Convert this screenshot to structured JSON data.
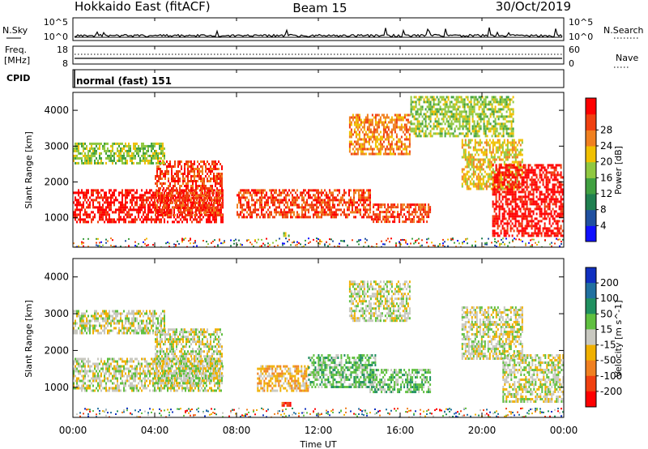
{
  "header": {
    "title_left": "Hokkaido East (fitACF)",
    "title_center": "Beam 15",
    "title_right": "30/Oct/2019"
  },
  "top_panels": {
    "nsky_label": "N.Sky",
    "nsky_ticks": [
      "10^5",
      "10^0"
    ],
    "nsearch_label": "N.Search",
    "freq_label_line1": "Freq.",
    "freq_label_line2": "[MHz]",
    "freq_ticks": [
      "18",
      "8"
    ],
    "nave_label": "Nave",
    "nave_ticks": [
      "60",
      "0"
    ],
    "cpid_label": "CPID",
    "cpid_value": "normal (fast) 151"
  },
  "chart_data": [
    {
      "type": "heatmap",
      "name": "power",
      "ylabel": "Slant Range [km]",
      "xlabel": "Time UT",
      "x_ticks": [
        "00:00",
        "04:00",
        "08:00",
        "12:00",
        "16:00",
        "20:00",
        "00:00"
      ],
      "x_range_hours": [
        0,
        24
      ],
      "y_ticks": [
        1000,
        2000,
        3000,
        4000
      ],
      "ylim": [
        180,
        4500
      ],
      "colorbar": {
        "label": "Power [dB]",
        "ticks": [
          "4",
          "8",
          "12",
          "16",
          "20",
          "24",
          "28"
        ],
        "colors": [
          "#1010ff",
          "#2050a0",
          "#208050",
          "#40a040",
          "#90c840",
          "#f0c000",
          "#f08020",
          "#f04010",
          "#ff0000"
        ]
      },
      "regions": [
        {
          "t": [
            0.0,
            7.3
          ],
          "r": [
            900,
            1800
          ],
          "level": 8
        },
        {
          "t": [
            4.0,
            7.3
          ],
          "r": [
            1100,
            2600
          ],
          "level": 7
        },
        {
          "t": [
            0.0,
            4.5
          ],
          "r": [
            2500,
            3100
          ],
          "level": 4
        },
        {
          "t": [
            8.0,
            14.5
          ],
          "r": [
            1000,
            1800
          ],
          "level": 7
        },
        {
          "t": [
            10.2,
            10.6
          ],
          "r": [
            500,
            600
          ],
          "level": 4
        },
        {
          "t": [
            14.5,
            17.5
          ],
          "r": [
            900,
            1400
          ],
          "level": 7
        },
        {
          "t": [
            13.5,
            16.5
          ],
          "r": [
            2800,
            3900
          ],
          "level": 6
        },
        {
          "t": [
            19.0,
            22.0
          ],
          "r": [
            1800,
            3200
          ],
          "level": 5
        },
        {
          "t": [
            20.5,
            24.0
          ],
          "r": [
            500,
            2500
          ],
          "level": 8
        },
        {
          "t": [
            16.5,
            21.5
          ],
          "r": [
            3300,
            4400
          ],
          "level": 4
        }
      ]
    },
    {
      "type": "heatmap",
      "name": "velocity",
      "ylabel": "Slant Range [km]",
      "xlabel": "Time UT",
      "x_ticks": [
        "00:00",
        "04:00",
        "08:00",
        "12:00",
        "16:00",
        "20:00",
        "00:00"
      ],
      "x_range_hours": [
        0,
        24
      ],
      "y_ticks": [
        1000,
        2000,
        3000,
        4000
      ],
      "ylim": [
        180,
        4500
      ],
      "colorbar": {
        "label": "Velocity [m s^-1]",
        "ticks": [
          "200",
          "100",
          "50",
          "15",
          "-15",
          "-50",
          "-100",
          "-200"
        ],
        "colors": [
          "#1030c0",
          "#2070a0",
          "#209060",
          "#60c040",
          "#c8c8c0",
          "#f0b000",
          "#f08020",
          "#f04010",
          "#ff0000"
        ]
      },
      "regions": [
        {
          "t": [
            0.0,
            7.3
          ],
          "r": [
            900,
            1800
          ],
          "level": 4
        },
        {
          "t": [
            4.0,
            7.3
          ],
          "r": [
            1100,
            2600
          ],
          "level": 4
        },
        {
          "t": [
            0.0,
            4.5
          ],
          "r": [
            2500,
            3100
          ],
          "level": 4
        },
        {
          "t": [
            9.0,
            11.5
          ],
          "r": [
            900,
            1600
          ],
          "level": 5
        },
        {
          "t": [
            11.5,
            14.8
          ],
          "r": [
            1000,
            1900
          ],
          "level": 3
        },
        {
          "t": [
            14.5,
            17.5
          ],
          "r": [
            900,
            1500
          ],
          "level": 3
        },
        {
          "t": [
            13.5,
            16.5
          ],
          "r": [
            2800,
            3900
          ],
          "level": 4
        },
        {
          "t": [
            19.0,
            22.0
          ],
          "r": [
            1800,
            3200
          ],
          "level": 4
        },
        {
          "t": [
            21.0,
            24.0
          ],
          "r": [
            600,
            1900
          ],
          "level": 4
        },
        {
          "t": [
            10.2,
            10.6
          ],
          "r": [
            500,
            600
          ],
          "level": 7
        }
      ]
    }
  ]
}
